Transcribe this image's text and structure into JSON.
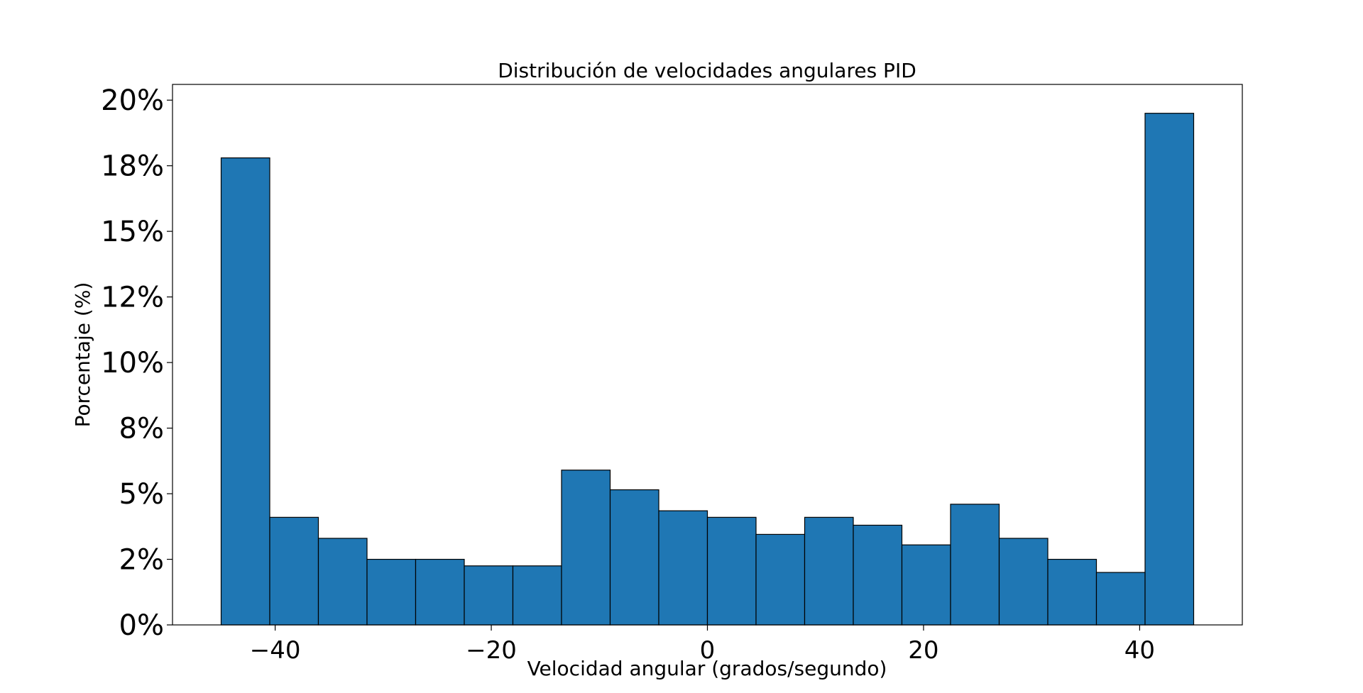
{
  "chart_data": {
    "type": "bar",
    "title": "Distribución de velocidades angulares PID",
    "xlabel": "Velocidad angular (grados/segundo)",
    "ylabel": "Porcentaje (%)",
    "bin_edges": [
      -45,
      -40.5,
      -36,
      -31.5,
      -27,
      -22.5,
      -18,
      -13.5,
      -9,
      -4.5,
      0,
      4.5,
      9,
      13.5,
      18,
      22.5,
      27,
      31.5,
      36,
      40.5,
      45
    ],
    "values": [
      17.8,
      4.1,
      3.3,
      2.5,
      2.5,
      2.25,
      2.25,
      5.9,
      5.15,
      4.35,
      4.1,
      3.45,
      4.1,
      3.8,
      3.05,
      4.6,
      3.3,
      2.5,
      2.0,
      19.5
    ],
    "xlim": [
      -49.5,
      49.5
    ],
    "ylim": [
      0,
      20.6
    ],
    "x_ticks": [
      -40,
      -20,
      0,
      20,
      40
    ],
    "x_tick_labels": [
      "−40",
      "−20",
      "0",
      "20",
      "40"
    ],
    "y_ticks": [
      0,
      2.5,
      5,
      7.5,
      10,
      12.5,
      15,
      17.5,
      20
    ],
    "y_tick_labels": [
      "0%",
      "2%",
      "5%",
      "8%",
      "10%",
      "12%",
      "15%",
      "18%",
      "20%"
    ],
    "bar_color": "#1f77b4",
    "edge_color": "#000000",
    "grid": false,
    "legend": "none"
  }
}
